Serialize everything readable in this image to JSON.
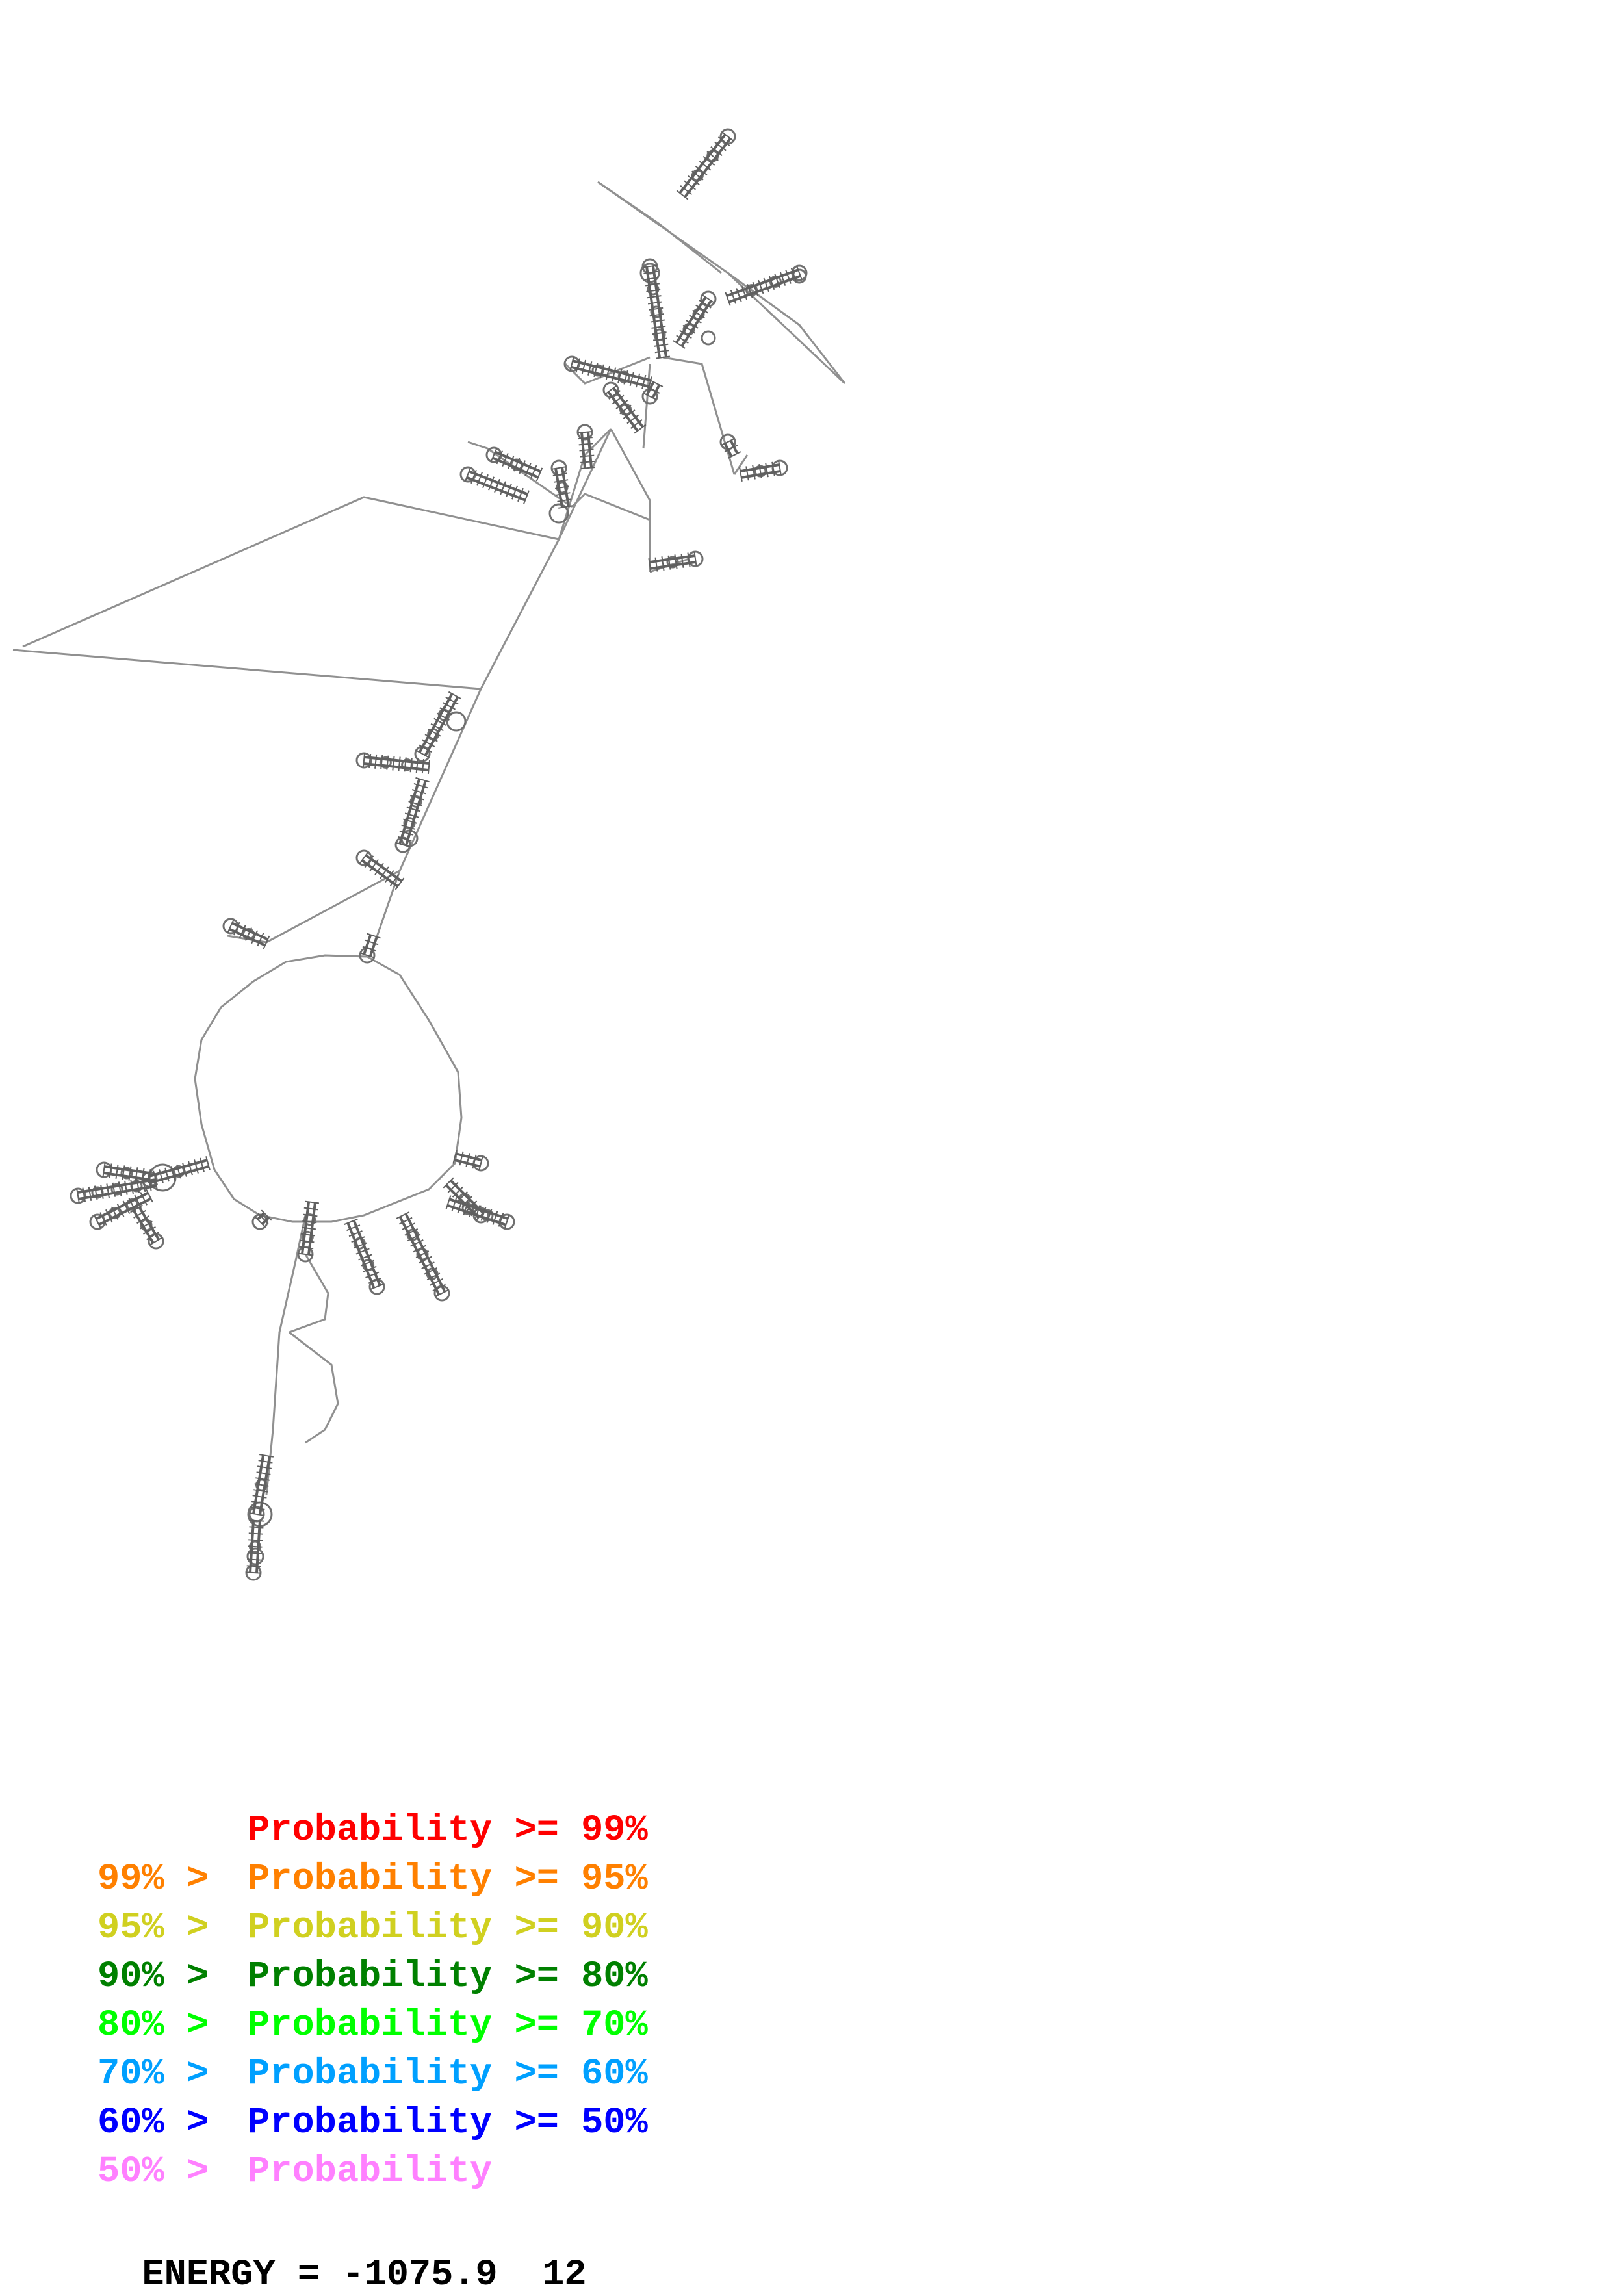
{
  "legend": {
    "rows": [
      {
        "upper": "",
        "middle": "Probability",
        "lower": ">= 99%",
        "color": "#ff0000"
      },
      {
        "upper": "99% >",
        "middle": "Probability",
        "lower": ">= 95%",
        "color": "#ff8000"
      },
      {
        "upper": "95% >",
        "middle": "Probability",
        "lower": ">= 90%",
        "color": "#d0d020"
      },
      {
        "upper": "90% >",
        "middle": "Probability",
        "lower": ">= 80%",
        "color": "#008000"
      },
      {
        "upper": "80% >",
        "middle": "Probability",
        "lower": ">= 70%",
        "color": "#00ff00"
      },
      {
        "upper": "70% >",
        "middle": "Probability",
        "lower": ">= 60%",
        "color": "#00a0ff"
      },
      {
        "upper": "60% >",
        "middle": "Probability",
        "lower": ">= 50%",
        "color": "#0000ff"
      },
      {
        "upper": "50% >",
        "middle": "Probability",
        "lower": "",
        "color": "#ff80ff"
      }
    ]
  },
  "energy": {
    "label": "ENERGY",
    "value": "-1075.9",
    "extra": "12"
  },
  "structure": {
    "line_color": "#909090",
    "pair_color": "#606060"
  }
}
